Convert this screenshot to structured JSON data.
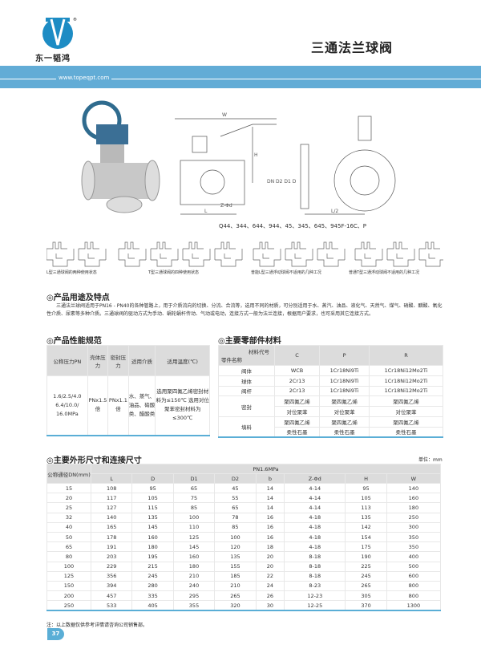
{
  "header": {
    "brand": "东一韬鸿",
    "title": "三通法兰球阀",
    "url": "www.topeqpt.com",
    "accent": "#62acd6"
  },
  "drawing": {
    "labels": {
      "W": "W",
      "H": "H",
      "L": "L",
      "L2": "L/2",
      "DN": "DN",
      "D2": "D2",
      "D1": "D1",
      "D": "D",
      "Zd": "Z-Φd",
      "b": "b"
    },
    "models": "Q44、344、644、944、45、345、645、945F-16C、P",
    "captions": [
      "L型三通球阀的两种使用状态",
      "T型三通球阀的四种使用状态",
      "普能L型三通浮动球阀不适用的几种工况",
      "普通T型三通浮动球阀不适用的几种工况"
    ]
  },
  "usage": {
    "title": "◎产品用途及特点",
    "text": "三通法兰球阀适用于PN16 - PN40的各种管路上，用于介质流向的切换、分流、合流等，选用不同的材质，可分别适用于水、蒸汽、油品、液化气、天然气、煤气、硝酸、醋酸、氧化性介质、尿素等多种介质。三通球阀的驱动方式为手动、蜗轮蜗杆传动、气动或电动，连接方式一般为法兰连接，根据用户要求，也可采用其它连接方式。"
  },
  "performance": {
    "title": "◎产品性能规范",
    "headers": [
      "公称压力PN",
      "壳体压力",
      "密封压力",
      "适用介质",
      "适用温度(℃)"
    ],
    "row": [
      "1.6/2.5/4.0 6.4/10.0/ 16.0MPa",
      "PNx1.5倍",
      "PNx1.1倍",
      "水、蒸气、油品、硝酸类、醋酸类",
      "选用聚四氟乙烯密封材料为≤150℃ 选用对位聚苯密封材料为≤300℃"
    ]
  },
  "materials": {
    "title": "◎主要零部件材料",
    "corner_top": "材料代号",
    "corner_bottom": "零件名称",
    "headers": [
      "C",
      "P",
      "R"
    ],
    "rows": [
      [
        "阀体",
        "WCB",
        "1Cr18Ni9Ti",
        "1Cr18Ni12Mo2Ti"
      ],
      [
        "球体",
        "2Cr13",
        "1Cr18Ni9Ti",
        "1Cr18Ni12Mo2Ti"
      ],
      [
        "阀杆",
        "2Cr13",
        "1Cr18Ni9Ti",
        "1Cr18Ni12Mo2Ti"
      ]
    ],
    "groups": [
      {
        "name": "密封",
        "rows": [
          [
            "聚四氟乙烯",
            "聚四氟乙烯",
            "聚四氟乙烯"
          ],
          [
            "对位聚苯",
            "对位聚苯",
            "对位聚苯"
          ]
        ]
      },
      {
        "name": "填料",
        "rows": [
          [
            "聚四氟乙烯",
            "聚四氟乙烯",
            "聚四氟乙烯"
          ],
          [
            "柔性石墨",
            "柔性石墨",
            "柔性石墨"
          ]
        ]
      }
    ]
  },
  "dimensions": {
    "title": "◎主要外形尺寸和连接尺寸",
    "unit": "单位：mm",
    "dn_header": "公称通径DN(mm)",
    "pressure": "PN1.6MPa",
    "headers": [
      "L",
      "D",
      "D1",
      "D2",
      "b",
      "Z-Φd",
      "H",
      "W"
    ],
    "rows": [
      [
        "15",
        "108",
        "95",
        "65",
        "45",
        "14",
        "4-14",
        "95",
        "140"
      ],
      [
        "20",
        "117",
        "105",
        "75",
        "55",
        "14",
        "4-14",
        "105",
        "160"
      ],
      [
        "25",
        "127",
        "115",
        "85",
        "65",
        "14",
        "4-14",
        "113",
        "180"
      ],
      [
        "32",
        "140",
        "135",
        "100",
        "78",
        "16",
        "4-18",
        "135",
        "250"
      ],
      [
        "40",
        "165",
        "145",
        "110",
        "85",
        "16",
        "4-18",
        "142",
        "300"
      ],
      [
        "50",
        "178",
        "160",
        "125",
        "100",
        "16",
        "4-18",
        "154",
        "350"
      ],
      [
        "65",
        "191",
        "180",
        "145",
        "120",
        "18",
        "4-18",
        "175",
        "350"
      ],
      [
        "80",
        "203",
        "195",
        "160",
        "135",
        "20",
        "8-18",
        "190",
        "400"
      ],
      [
        "100",
        "229",
        "215",
        "180",
        "155",
        "20",
        "8-18",
        "225",
        "500"
      ],
      [
        "125",
        "356",
        "245",
        "210",
        "185",
        "22",
        "8-18",
        "245",
        "600"
      ],
      [
        "150",
        "394",
        "280",
        "240",
        "210",
        "24",
        "8-23",
        "265",
        "800"
      ],
      [
        "200",
        "457",
        "335",
        "295",
        "265",
        "26",
        "12-23",
        "305",
        "800"
      ],
      [
        "250",
        "533",
        "405",
        "355",
        "320",
        "30",
        "12-25",
        "370",
        "1300"
      ]
    ],
    "note": "注：以上数据仅供参考详情请咨询公司销售部。"
  },
  "page_number": "37"
}
